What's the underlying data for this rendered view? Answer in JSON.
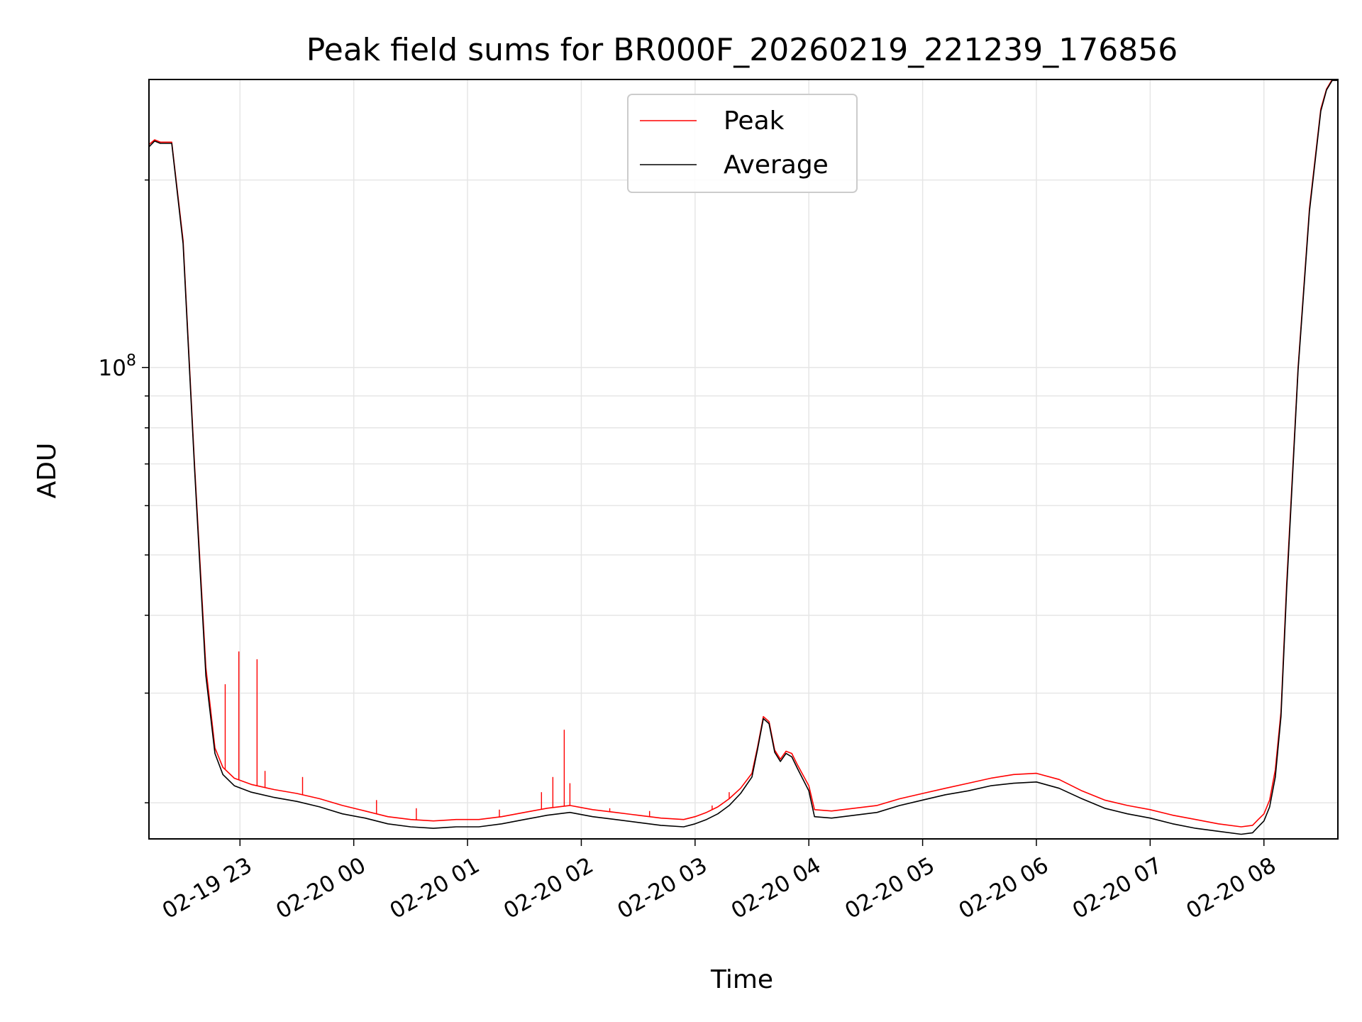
{
  "chart_data": {
    "type": "line",
    "title": "Peak field sums for BR000F_20260219_221239_176856",
    "xlabel": "Time",
    "ylabel": "ADU",
    "yscale": "log",
    "ylim": [
      17500000,
      290000000
    ],
    "xlim": [
      22.2,
      32.65
    ],
    "grid": true,
    "legend": {
      "placement": "upper center",
      "entries": [
        "Peak",
        "Average"
      ]
    },
    "x_ticks": [
      {
        "value": 23,
        "label": "02-19 23"
      },
      {
        "value": 24,
        "label": "02-20 00"
      },
      {
        "value": 25,
        "label": "02-20 01"
      },
      {
        "value": 26,
        "label": "02-20 02"
      },
      {
        "value": 27,
        "label": "02-20 03"
      },
      {
        "value": 28,
        "label": "02-20 04"
      },
      {
        "value": 29,
        "label": "02-20 05"
      },
      {
        "value": 30,
        "label": "02-20 06"
      },
      {
        "value": 31,
        "label": "02-20 07"
      },
      {
        "value": 32,
        "label": "02-20 08"
      }
    ],
    "y_major_ticks": [
      {
        "value": 100000000,
        "label": "10^8"
      }
    ],
    "y_minor_ticks": [
      20000000,
      30000000,
      40000000,
      50000000,
      60000000,
      70000000,
      80000000,
      90000000,
      200000000
    ],
    "series": [
      {
        "name": "Peak",
        "color": "#ff0000",
        "x": [
          22.2,
          22.25,
          22.3,
          22.4,
          22.5,
          22.6,
          22.7,
          22.78,
          22.85,
          22.95,
          23.1,
          23.3,
          23.5,
          23.7,
          23.9,
          24.1,
          24.3,
          24.5,
          24.7,
          24.9,
          25.1,
          25.3,
          25.5,
          25.7,
          25.9,
          26.1,
          26.3,
          26.5,
          26.7,
          26.9,
          27.0,
          27.1,
          27.2,
          27.3,
          27.4,
          27.5,
          27.55,
          27.6,
          27.65,
          27.7,
          27.75,
          27.8,
          27.85,
          27.9,
          28.0,
          28.05,
          28.2,
          28.4,
          28.6,
          28.8,
          29.0,
          29.2,
          29.4,
          29.6,
          29.8,
          30.0,
          30.2,
          30.4,
          30.6,
          30.8,
          31.0,
          31.2,
          31.4,
          31.6,
          31.8,
          31.9,
          31.95,
          32.0,
          32.05,
          32.1,
          32.15,
          32.2,
          32.3,
          32.4,
          32.5,
          32.55,
          32.6,
          32.65
        ],
        "values": [
          228000000,
          232000000,
          230000000,
          230000000,
          160000000,
          70000000,
          33000000,
          24500000,
          22800000,
          21900000,
          21400000,
          21000000,
          20700000,
          20300000,
          19800000,
          19400000,
          19000000,
          18800000,
          18700000,
          18800000,
          18800000,
          19000000,
          19300000,
          19600000,
          19800000,
          19500000,
          19300000,
          19100000,
          18900000,
          18800000,
          19000000,
          19300000,
          19700000,
          20300000,
          21100000,
          22300000,
          24600000,
          27500000,
          27000000,
          24300000,
          23500000,
          24200000,
          24000000,
          23000000,
          21300000,
          19500000,
          19400000,
          19600000,
          19800000,
          20300000,
          20700000,
          21100000,
          21500000,
          21900000,
          22200000,
          22300000,
          21800000,
          20900000,
          20200000,
          19800000,
          19500000,
          19100000,
          18800000,
          18500000,
          18300000,
          18400000,
          18800000,
          19200000,
          20200000,
          22600000,
          28000000,
          45000000,
          100000000,
          180000000,
          260000000,
          280000000,
          290000000,
          290000000
        ]
      },
      {
        "name": "Average",
        "color": "#000000",
        "x": [
          22.2,
          22.25,
          22.3,
          22.4,
          22.5,
          22.6,
          22.7,
          22.78,
          22.85,
          22.95,
          23.1,
          23.3,
          23.5,
          23.7,
          23.9,
          24.1,
          24.3,
          24.5,
          24.7,
          24.9,
          25.1,
          25.3,
          25.5,
          25.7,
          25.9,
          26.1,
          26.3,
          26.5,
          26.7,
          26.9,
          27.0,
          27.1,
          27.2,
          27.3,
          27.4,
          27.5,
          27.55,
          27.6,
          27.65,
          27.7,
          27.75,
          27.8,
          27.85,
          27.9,
          28.0,
          28.05,
          28.2,
          28.4,
          28.6,
          28.8,
          29.0,
          29.2,
          29.4,
          29.6,
          29.8,
          30.0,
          30.2,
          30.4,
          30.6,
          30.8,
          31.0,
          31.2,
          31.4,
          31.6,
          31.8,
          31.9,
          31.95,
          32.0,
          32.05,
          32.1,
          32.15,
          32.2,
          32.3,
          32.4,
          32.5,
          32.55,
          32.6,
          32.65
        ],
        "values": [
          226000000,
          231000000,
          229000000,
          229000000,
          158000000,
          69000000,
          32000000,
          24000000,
          22200000,
          21300000,
          20800000,
          20400000,
          20100000,
          19700000,
          19200000,
          18900000,
          18500000,
          18300000,
          18200000,
          18300000,
          18300000,
          18500000,
          18800000,
          19100000,
          19300000,
          19000000,
          18800000,
          18600000,
          18400000,
          18300000,
          18500000,
          18800000,
          19200000,
          19800000,
          20700000,
          22000000,
          24400000,
          27300000,
          26800000,
          24100000,
          23300000,
          24000000,
          23700000,
          22700000,
          20900000,
          19000000,
          18900000,
          19100000,
          19300000,
          19800000,
          20200000,
          20600000,
          20900000,
          21300000,
          21500000,
          21600000,
          21100000,
          20300000,
          19600000,
          19200000,
          18900000,
          18500000,
          18200000,
          18000000,
          17800000,
          17900000,
          18300000,
          18700000,
          19700000,
          22000000,
          27500000,
          44000000,
          99000000,
          178000000,
          258000000,
          279000000,
          289000000,
          289000000
        ]
      }
    ],
    "spikes": {
      "series": "Peak",
      "x": [
        22.87,
        22.99,
        23.15,
        23.22,
        23.55,
        24.2,
        24.55,
        25.28,
        25.65,
        25.75,
        25.85,
        25.9,
        26.25,
        26.6,
        27.15,
        27.3
      ],
      "values": [
        31000000,
        35000000,
        34000000,
        22500000,
        22000000,
        20200000,
        19600000,
        19500000,
        20800000,
        22000000,
        26200000,
        21500000,
        19600000,
        19400000,
        19800000,
        20800000
      ]
    }
  }
}
